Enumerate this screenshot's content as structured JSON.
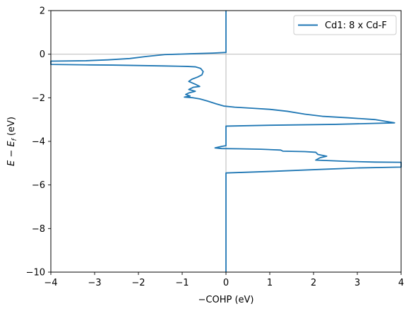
{
  "chart_data": {
    "type": "line",
    "xlabel": "−COHP (eV)",
    "ylabel_parts": {
      "main": "E − E",
      "sub": "f",
      "unit": " (eV)"
    },
    "xlim": [
      -4,
      4
    ],
    "ylim": [
      -10,
      2
    ],
    "xticks": [
      {
        "value": -4,
        "label": "−4"
      },
      {
        "value": -3,
        "label": "−3"
      },
      {
        "value": -2,
        "label": "−2"
      },
      {
        "value": -1,
        "label": "−1"
      },
      {
        "value": 0,
        "label": "0"
      },
      {
        "value": 1,
        "label": "1"
      },
      {
        "value": 2,
        "label": "2"
      },
      {
        "value": 3,
        "label": "3"
      },
      {
        "value": 4,
        "label": "4"
      }
    ],
    "yticks": [
      {
        "value": 2,
        "label": "2"
      },
      {
        "value": 0,
        "label": "0"
      },
      {
        "value": -2,
        "label": "−2"
      },
      {
        "value": -4,
        "label": "−4"
      },
      {
        "value": -6,
        "label": "−6"
      },
      {
        "value": -8,
        "label": "−8"
      },
      {
        "value": -10,
        "label": "−10"
      }
    ],
    "reference_lines": {
      "x": 0,
      "y": 0,
      "color": "#b0b0b0"
    },
    "legend_position": "upper-right",
    "series": [
      {
        "name": "Cd1: 8 x Cd-F",
        "color": "#1f77b4",
        "points": [
          [
            0.0,
            2.0
          ],
          [
            0.0,
            0.08
          ],
          [
            -0.3,
            0.05
          ],
          [
            -0.8,
            0.02
          ],
          [
            -1.4,
            -0.02
          ],
          [
            -1.8,
            -0.1
          ],
          [
            -2.2,
            -0.2
          ],
          [
            -2.7,
            -0.26
          ],
          [
            -3.2,
            -0.3
          ],
          [
            -4.0,
            -0.32
          ],
          [
            -4.0,
            -0.47
          ],
          [
            -3.2,
            -0.49
          ],
          [
            -2.6,
            -0.5
          ],
          [
            -2.0,
            -0.52
          ],
          [
            -1.4,
            -0.54
          ],
          [
            -0.9,
            -0.56
          ],
          [
            -0.7,
            -0.58
          ],
          [
            -0.58,
            -0.65
          ],
          [
            -0.52,
            -0.8
          ],
          [
            -0.55,
            -0.95
          ],
          [
            -0.65,
            -1.05
          ],
          [
            -0.78,
            -1.15
          ],
          [
            -0.85,
            -1.25
          ],
          [
            -0.7,
            -1.38
          ],
          [
            -0.6,
            -1.48
          ],
          [
            -0.75,
            -1.52
          ],
          [
            -0.85,
            -1.62
          ],
          [
            -0.7,
            -1.7
          ],
          [
            -0.85,
            -1.78
          ],
          [
            -0.92,
            -1.85
          ],
          [
            -0.82,
            -1.92
          ],
          [
            -0.95,
            -1.97
          ],
          [
            -0.75,
            -2.0
          ],
          [
            -0.6,
            -2.05
          ],
          [
            -0.42,
            -2.15
          ],
          [
            -0.22,
            -2.28
          ],
          [
            -0.05,
            -2.38
          ],
          [
            0.2,
            -2.43
          ],
          [
            0.6,
            -2.48
          ],
          [
            1.0,
            -2.53
          ],
          [
            1.4,
            -2.62
          ],
          [
            1.8,
            -2.75
          ],
          [
            2.2,
            -2.85
          ],
          [
            2.8,
            -2.92
          ],
          [
            3.4,
            -3.0
          ],
          [
            3.85,
            -3.15
          ],
          [
            2.5,
            -3.22
          ],
          [
            1.0,
            -3.26
          ],
          [
            0.0,
            -3.3
          ],
          [
            0.0,
            -4.2
          ],
          [
            -0.1,
            -4.23
          ],
          [
            -0.25,
            -4.3
          ],
          [
            -0.1,
            -4.33
          ],
          [
            0.3,
            -4.34
          ],
          [
            0.8,
            -4.36
          ],
          [
            1.25,
            -4.4
          ],
          [
            1.3,
            -4.45
          ],
          [
            1.8,
            -4.47
          ],
          [
            2.05,
            -4.5
          ],
          [
            2.1,
            -4.6
          ],
          [
            2.3,
            -4.68
          ],
          [
            2.15,
            -4.75
          ],
          [
            2.05,
            -4.86
          ],
          [
            2.8,
            -4.92
          ],
          [
            3.4,
            -4.95
          ],
          [
            4.0,
            -4.96
          ],
          [
            4.0,
            -5.18
          ],
          [
            3.0,
            -5.22
          ],
          [
            2.0,
            -5.3
          ],
          [
            1.0,
            -5.38
          ],
          [
            0.0,
            -5.45
          ],
          [
            0.0,
            -10.0
          ]
        ]
      }
    ]
  }
}
